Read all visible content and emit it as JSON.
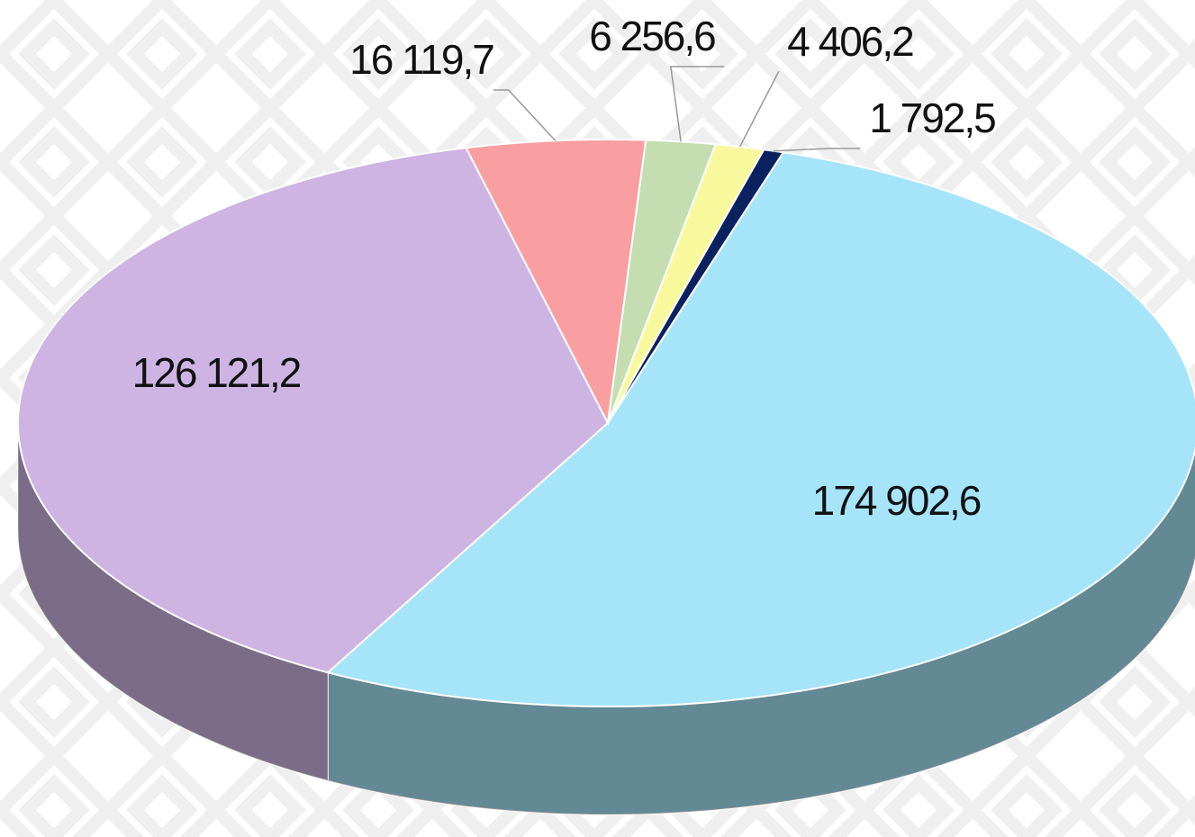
{
  "chart_data": {
    "type": "pie",
    "categories": [
      null,
      null,
      null,
      null,
      null,
      null
    ],
    "values": [
      174902.6,
      126121.2,
      16119.7,
      6256.6,
      4406.2,
      1792.5
    ],
    "value_labels": [
      "174 902,6",
      "126 121,2",
      "16 119,7",
      "6 256,6",
      "4 406,2",
      "1 792,5"
    ],
    "colors": [
      "#a6e4f9",
      "#cdb4e3",
      "#f99fa1",
      "#c4ddb1",
      "#f8f99c",
      "#0b2160"
    ],
    "three_d": true
  }
}
